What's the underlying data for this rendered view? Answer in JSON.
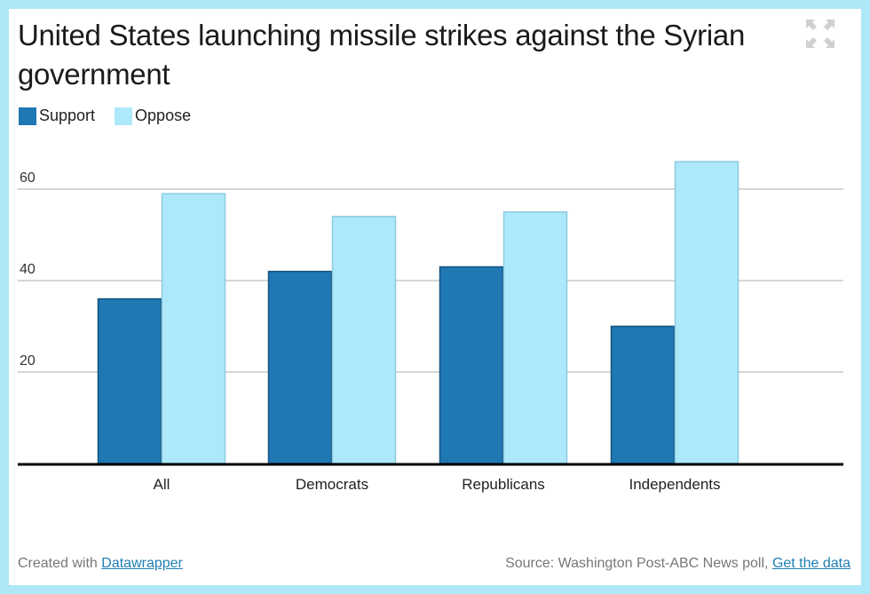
{
  "header": {
    "title": "United States launching missile strikes against the Syrian government",
    "expand_icon": "fullscreen-expand-icon"
  },
  "legend": [
    {
      "label": "Support",
      "color": "#1f77b4"
    },
    {
      "label": "Oppose",
      "color": "#aee8fb"
    }
  ],
  "chart_data": {
    "type": "bar",
    "title": "United States launching missile strikes against the Syrian government",
    "categories": [
      "All",
      "Democrats",
      "Republicans",
      "Independents"
    ],
    "series": [
      {
        "name": "Support",
        "values": [
          36,
          42,
          43,
          30
        ],
        "color": "#1f77b4"
      },
      {
        "name": "Oppose",
        "values": [
          59,
          54,
          55,
          66
        ],
        "color": "#aee8fb"
      }
    ],
    "y_ticks": [
      "20",
      "40",
      "60"
    ],
    "ylim": [
      0,
      70
    ],
    "xlabel": "",
    "ylabel": "",
    "grid": true,
    "legend_position": "top-left"
  },
  "footer": {
    "created_prefix": "Created with ",
    "created_link": "Datawrapper",
    "source_prefix": "Source: Washington Post-ABC News poll, ",
    "source_link": "Get the data"
  }
}
